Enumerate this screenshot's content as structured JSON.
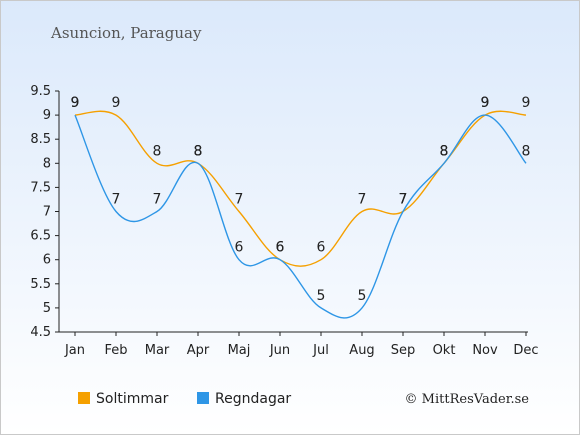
{
  "chart_data": {
    "type": "line",
    "title": "Asuncion, Paraguay",
    "categories": [
      "Jan",
      "Feb",
      "Mar",
      "Apr",
      "Maj",
      "Jun",
      "Jul",
      "Aug",
      "Sep",
      "Okt",
      "Nov",
      "Dec"
    ],
    "yticks": [
      "4.5",
      "5",
      "5.5",
      "6",
      "6.5",
      "7",
      "7.5",
      "8",
      "8.5",
      "9",
      "9.5"
    ],
    "ylim": [
      4.5,
      9.5
    ],
    "grid": false,
    "legend_position": "bottom-left",
    "series": [
      {
        "name": "Soltimmar",
        "color": "#f5a000",
        "values": [
          9,
          9,
          8,
          8,
          7,
          6,
          6,
          7,
          7,
          8,
          9,
          9
        ]
      },
      {
        "name": "Regndagar",
        "color": "#2e96e6",
        "values": [
          9,
          7,
          7,
          8,
          6,
          6,
          5,
          5,
          7,
          8,
          9,
          8
        ]
      }
    ],
    "credit": "© MittResVader.se"
  }
}
